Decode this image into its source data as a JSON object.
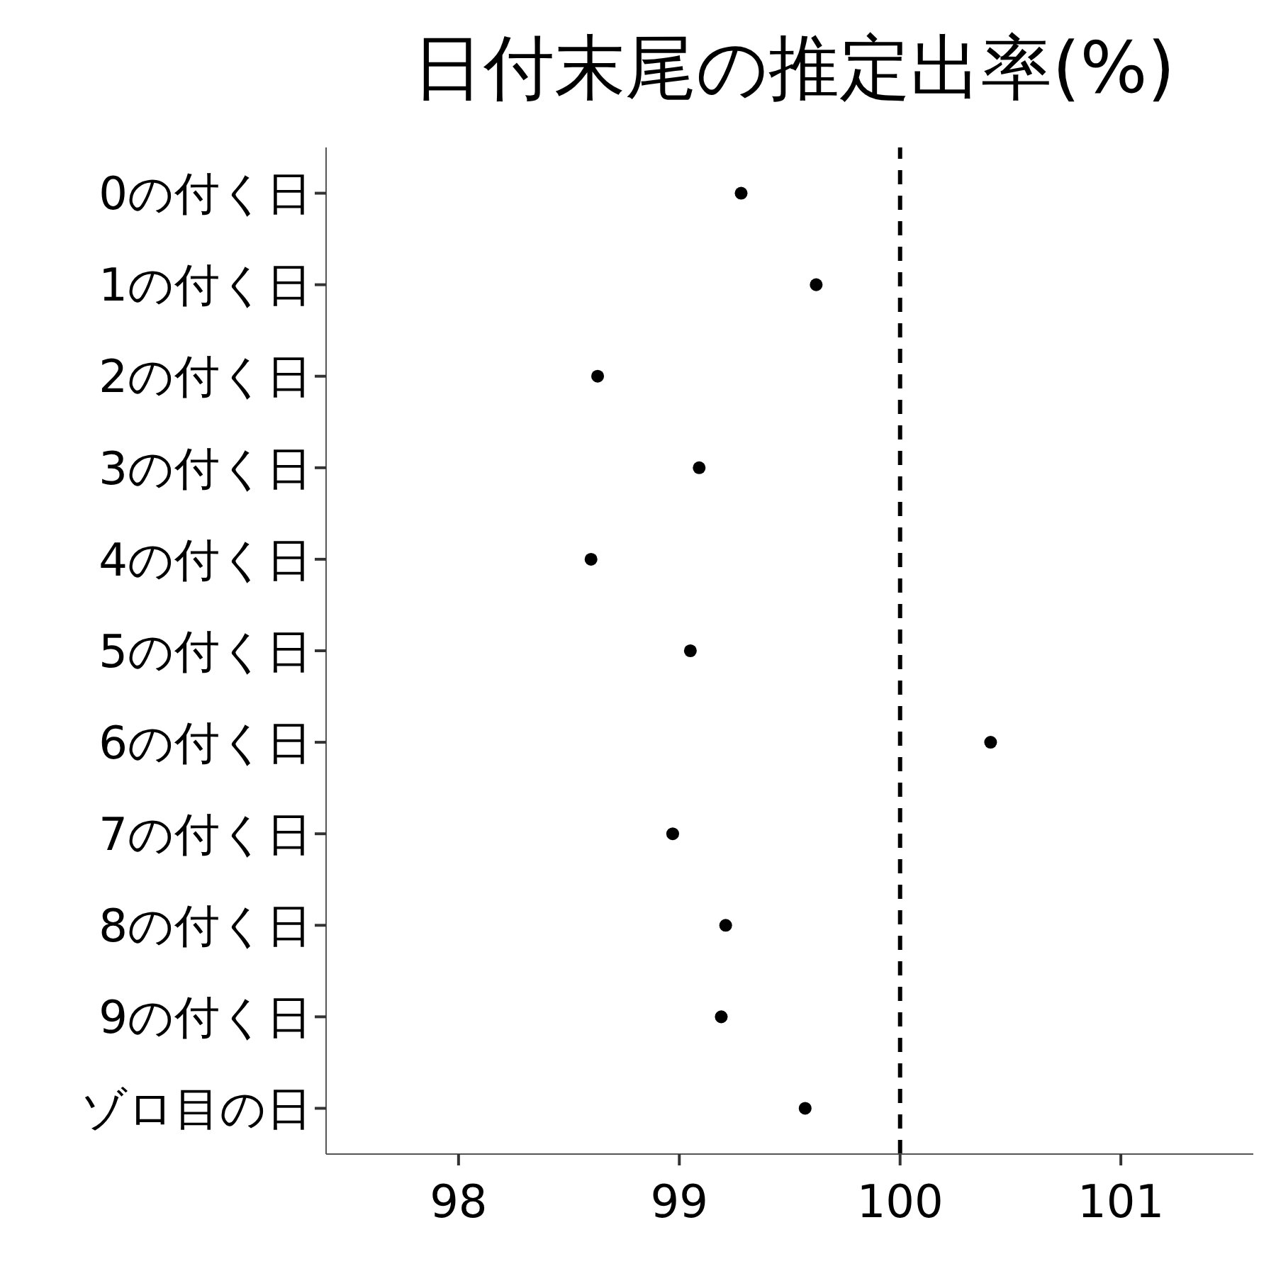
{
  "chart_data": {
    "type": "scatter",
    "title": "日付末尾の推定出率(%)",
    "orientation": "horizontal",
    "categories": [
      "0の付く日",
      "1の付く日",
      "2の付く日",
      "3の付く日",
      "4の付く日",
      "5の付く日",
      "6の付く日",
      "7の付く日",
      "8の付く日",
      "9の付く日",
      "ゾロ目の日"
    ],
    "series": [
      {
        "color": "#000000",
        "values": [
          99.28,
          99.62,
          98.63,
          99.09,
          98.6,
          99.05,
          100.41,
          98.97,
          99.21,
          99.19,
          99.57
        ]
      }
    ],
    "xlim": [
      97.4,
      101.6
    ],
    "xticks": [
      98,
      99,
      100,
      101
    ],
    "marker": "circle",
    "grid": false,
    "legend": false,
    "ref_lines": [
      {
        "axis": "x",
        "value": 100,
        "color": "#000000",
        "line_style": "dashed"
      }
    ]
  }
}
